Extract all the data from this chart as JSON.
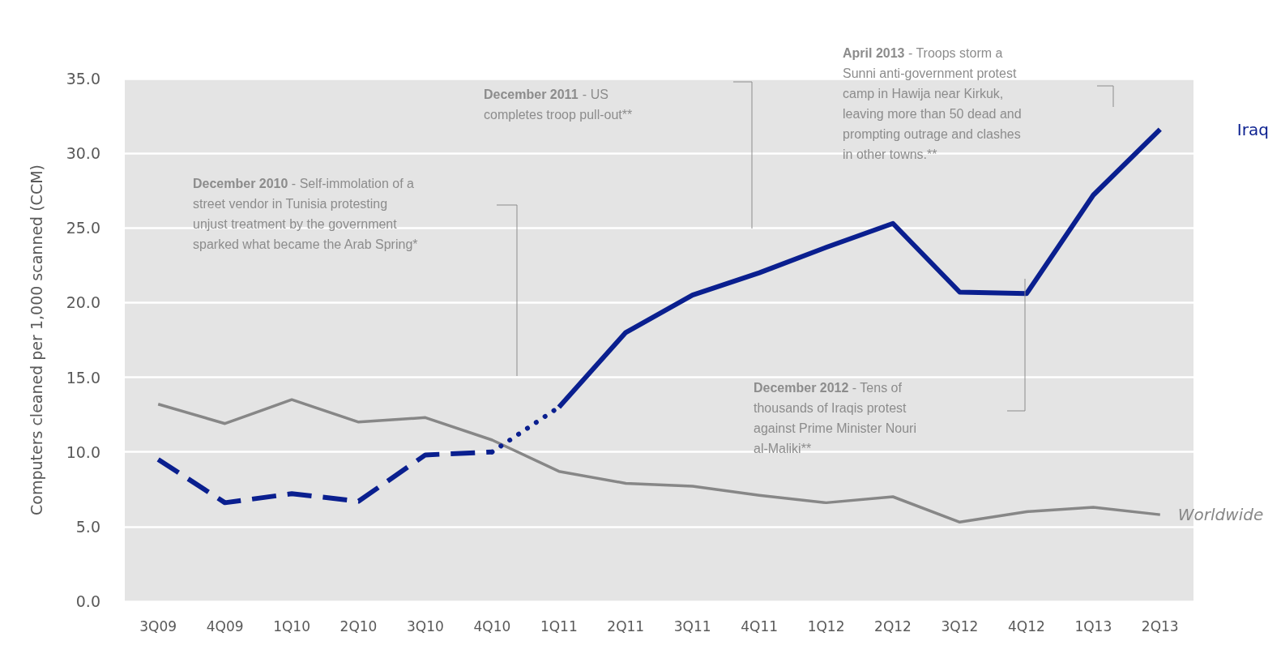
{
  "chart_data": {
    "type": "line",
    "ylabel": "Computers cleaned per 1,000 scanned (CCM)",
    "categories": [
      "3Q09",
      "4Q09",
      "1Q10",
      "2Q10",
      "3Q10",
      "4Q10",
      "1Q11",
      "2Q11",
      "3Q11",
      "4Q11",
      "1Q12",
      "2Q12",
      "3Q12",
      "4Q12",
      "1Q13",
      "2Q13"
    ],
    "series": [
      {
        "name": "Worldwide",
        "color": "#878787",
        "line_style": "solid",
        "values": [
          13.2,
          11.9,
          13.5,
          12.0,
          12.3,
          10.8,
          8.7,
          7.9,
          7.7,
          7.1,
          6.6,
          7.0,
          5.3,
          6.0,
          6.3,
          5.8
        ]
      },
      {
        "color": "#0a1f8f",
        "line_style": "dashed",
        "values": [
          9.5,
          6.6,
          7.2,
          6.7,
          9.8,
          10.0,
          null,
          null,
          null,
          null,
          null,
          null,
          null,
          null,
          null,
          null
        ]
      },
      {
        "color": "#0a1f8f",
        "line_style": "dotted",
        "values": [
          null,
          null,
          null,
          null,
          null,
          10.0,
          13.0,
          null,
          null,
          null,
          null,
          null,
          null,
          null,
          null,
          null
        ]
      },
      {
        "name": "Iraq",
        "color": "#0a1f8f",
        "line_style": "solid",
        "values": [
          null,
          null,
          null,
          null,
          null,
          null,
          13.0,
          18.0,
          20.5,
          22.0,
          23.7,
          25.3,
          20.7,
          20.6,
          27.2,
          31.6
        ]
      }
    ],
    "ylim": [
      0,
      35
    ],
    "yticks": [
      {
        "value": 0,
        "label": "0.0"
      },
      {
        "value": 5,
        "label": "5.0"
      },
      {
        "value": 10,
        "label": "10.0"
      },
      {
        "value": 15,
        "label": "15.0"
      },
      {
        "value": 20,
        "label": "20.0"
      },
      {
        "value": 25,
        "label": "25.0"
      },
      {
        "value": 30,
        "label": "30.0"
      },
      {
        "value": 35,
        "label": "35.0"
      }
    ],
    "grid": "y",
    "marker": "none",
    "annotations": [
      "December 2010 - Self-immolation of a street vendor in Tunisia protesting unjust treatment by the government sparked what became the Arab Spring*",
      "December 2011 - US completes troop pull-out**",
      "April 2013 - Troops storm a Sunni anti-government protest camp in Hawija near Kirkuk, leaving more than 50 dead and prompting outrage and clashes in other towns.**",
      "December 2012 - Tens of thousands of Iraqis protest against Prime Minister Nouri al-Maliki**"
    ]
  }
}
